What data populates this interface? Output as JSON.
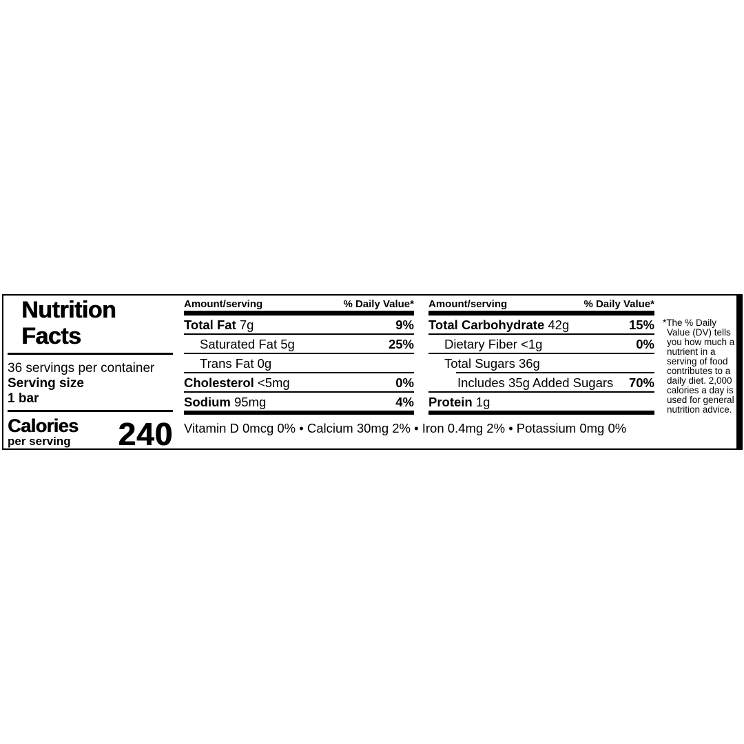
{
  "label": {
    "colors": {
      "ink": "#000000",
      "paper": "#ffffff"
    },
    "title_line1": "Nutrition",
    "title_line2": "Facts",
    "servings_per_container": "36 servings per container",
    "serving_size_label": "Serving size",
    "serving_size_value": "1 bar",
    "calories_label": "Calories",
    "calories_sublabel": "per serving",
    "calories_value": "240",
    "column_header": {
      "amount": "Amount/serving",
      "daily_value": "% Daily Value*"
    },
    "columns": [
      {
        "rows": [
          {
            "name": "Total Fat",
            "amount": "7g",
            "dv": "9%",
            "bold": true,
            "indent": 0,
            "sep": "thin"
          },
          {
            "name": "Saturated Fat",
            "amount": "5g",
            "dv": "25%",
            "bold": false,
            "indent": 1,
            "sep": "thin"
          },
          {
            "name": "Trans Fat",
            "amount": "0g",
            "dv": "",
            "bold": false,
            "indent": 1,
            "sep": "thin"
          },
          {
            "name": "Cholesterol",
            "amount": "<5mg",
            "dv": "0%",
            "bold": true,
            "indent": 0,
            "sep": "thin"
          },
          {
            "name": "Sodium",
            "amount": "95mg",
            "dv": "4%",
            "bold": true,
            "indent": 0,
            "sep": "thick"
          }
        ]
      },
      {
        "rows": [
          {
            "name": "Total Carbohydrate",
            "amount": "42g",
            "dv": "15%",
            "bold": true,
            "indent": 0,
            "sep": "thin"
          },
          {
            "name": "Dietary Fiber",
            "amount": "<1g",
            "dv": "0%",
            "bold": false,
            "indent": 1,
            "sep": "thin"
          },
          {
            "name": "Total Sugars",
            "amount": "36g",
            "dv": "",
            "bold": false,
            "indent": 1,
            "sep": "thin",
            "sep_indent": 2
          },
          {
            "name": "Includes 35g Added Sugars",
            "amount": "",
            "dv": "70%",
            "bold": false,
            "indent": 2,
            "sep": "thin"
          },
          {
            "name": "Protein",
            "amount": "1g",
            "dv": "",
            "bold": true,
            "indent": 0,
            "sep": "thick"
          }
        ]
      }
    ],
    "micronutrients": "Vitamin D 0mcg 0% • Calcium 30mg 2% • Iron 0.4mg 2% • Potassium 0mg 0%",
    "footnote_lines": [
      "*The % Daily",
      "Value (DV) tells",
      "you how much a",
      "nutrient in a",
      "serving of food",
      "contributes to a",
      "daily diet. 2,000",
      "calories a day is",
      "used for general",
      "nutrition advice."
    ]
  }
}
